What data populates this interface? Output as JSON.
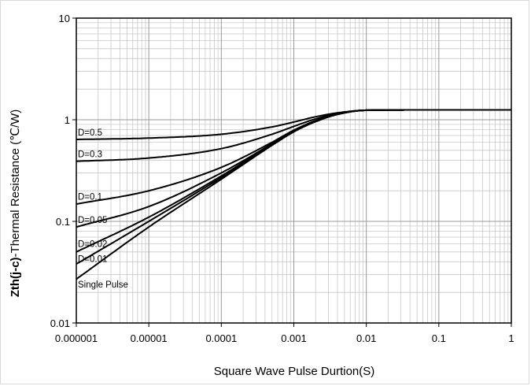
{
  "chart_data": {
    "type": "line",
    "xlabel": "Square Wave Pulse Durtion(S)",
    "ylabel_bold": "Zth(j-c)",
    "ylabel_rest": "-Thermal Resistance (℃/W)",
    "x_scale": "log",
    "y_scale": "log",
    "xlim": [
      1e-06,
      1
    ],
    "ylim": [
      0.01,
      10
    ],
    "x_tick_labels": [
      "0.000001",
      "0.00001",
      "0.0001",
      "0.001",
      "0.01",
      "0.1",
      "1"
    ],
    "y_tick_labels": [
      "0.01",
      "0.1",
      "1",
      "10"
    ],
    "grid": true,
    "series": [
      {
        "name": "D=0.5",
        "x": [
          1e-06,
          1e-05,
          0.0001,
          0.0005,
          0.001,
          0.002,
          0.004,
          0.01,
          0.1,
          1
        ],
        "y": [
          0.64,
          0.66,
          0.72,
          0.85,
          0.95,
          1.07,
          1.17,
          1.24,
          1.25,
          1.25
        ]
      },
      {
        "name": "D=0.3",
        "x": [
          1e-06,
          1e-05,
          0.0001,
          0.0005,
          0.001,
          0.002,
          0.004,
          0.01,
          0.1,
          1
        ],
        "y": [
          0.39,
          0.42,
          0.52,
          0.72,
          0.86,
          1.02,
          1.15,
          1.24,
          1.25,
          1.25
        ]
      },
      {
        "name": "D=0.1",
        "x": [
          1e-06,
          1e-05,
          0.0001,
          0.0005,
          0.001,
          0.002,
          0.004,
          0.01,
          0.1,
          1
        ],
        "y": [
          0.148,
          0.2,
          0.34,
          0.6,
          0.79,
          0.98,
          1.14,
          1.24,
          1.25,
          1.25
        ]
      },
      {
        "name": "D=0.05",
        "x": [
          1e-06,
          1e-05,
          0.0001,
          0.0005,
          0.001,
          0.002,
          0.004,
          0.01,
          0.1,
          1
        ],
        "y": [
          0.088,
          0.14,
          0.3,
          0.58,
          0.78,
          0.97,
          1.13,
          1.24,
          1.25,
          1.25
        ]
      },
      {
        "name": "D=0.02",
        "x": [
          1e-06,
          1e-05,
          0.0001,
          0.0005,
          0.001,
          0.002,
          0.004,
          0.01,
          0.1,
          1
        ],
        "y": [
          0.05,
          0.11,
          0.28,
          0.57,
          0.77,
          0.96,
          1.13,
          1.24,
          1.25,
          1.25
        ]
      },
      {
        "name": "D=0.01",
        "x": [
          1e-06,
          1e-05,
          0.0001,
          0.0005,
          0.001,
          0.002,
          0.004,
          0.01,
          0.1,
          1
        ],
        "y": [
          0.038,
          0.1,
          0.27,
          0.565,
          0.77,
          0.96,
          1.13,
          1.24,
          1.25,
          1.25
        ]
      },
      {
        "name": "Single Pulse",
        "x": [
          1e-06,
          1e-05,
          0.0001,
          0.0005,
          0.001,
          0.002,
          0.004,
          0.01,
          0.1,
          1
        ],
        "y": [
          0.027,
          0.088,
          0.26,
          0.56,
          0.76,
          0.96,
          1.13,
          1.24,
          1.25,
          1.25
        ]
      }
    ],
    "series_label_y": [
      0.75,
      0.46,
      0.175,
      0.104,
      0.06,
      0.043,
      0.024
    ]
  }
}
